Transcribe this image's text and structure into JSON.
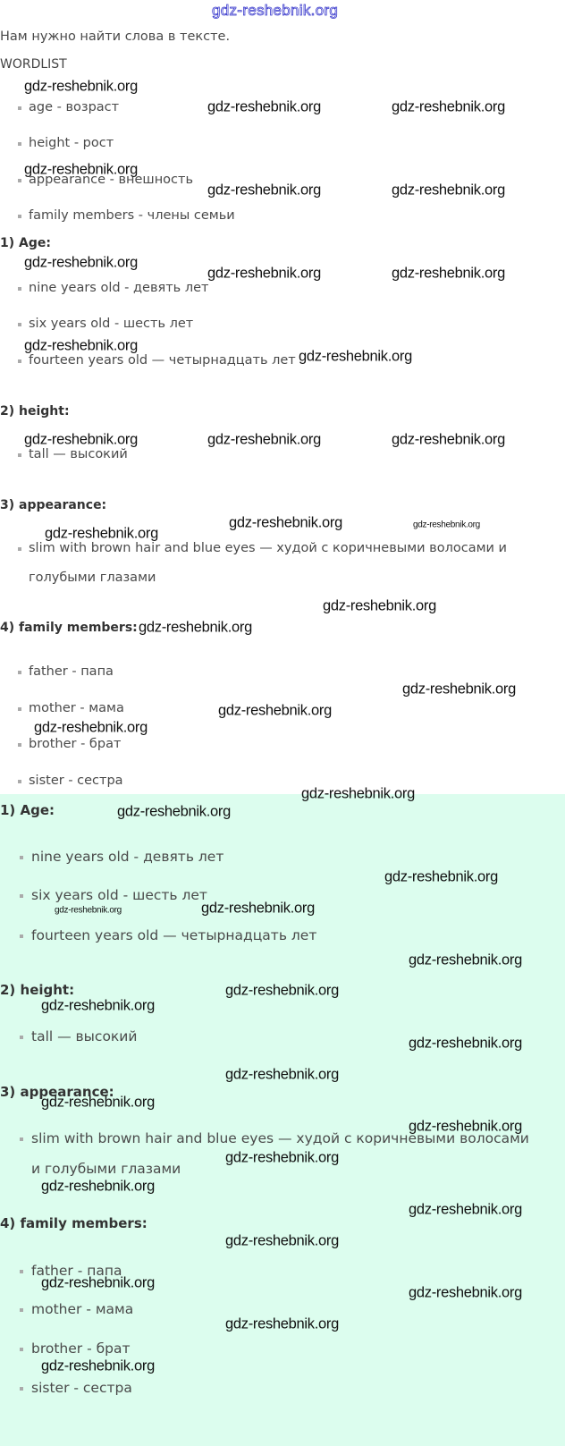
{
  "watermark": "gdz-reshebnik.org",
  "intro": "Нам нужно найти слова в тексте.",
  "wordlist": {
    "title": "WORDLIST",
    "items": [
      "age - возраст",
      "height - рост",
      "appearance - внешность",
      "family members - члены семьи"
    ]
  },
  "sections": {
    "age": {
      "title": "1) Age:",
      "items": [
        "nine years old - девять лет",
        "six years old - шесть лет",
        "fourteen years old — четырнадцать лет"
      ]
    },
    "height": {
      "title": "2) height:",
      "items": [
        "tall — высокий"
      ]
    },
    "appearance": {
      "title": "3) appearance:",
      "line1": "slim with brown hair and blue eyes — худой с коричневыми волосами и",
      "line2": "голубыми глазами"
    },
    "family": {
      "title": "4) family members:",
      "items": [
        "father - папа",
        "mother - мама",
        "brother - брат",
        "sister - сестра"
      ]
    }
  },
  "answer": {
    "appearance": {
      "line1": "slim with brown hair and blue eyes — худой с коричневыми волосами",
      "line2": "и голубыми глазами"
    }
  },
  "colors": {
    "answer_background": "#dcfdee",
    "watermark_top": "#3a3acc"
  }
}
